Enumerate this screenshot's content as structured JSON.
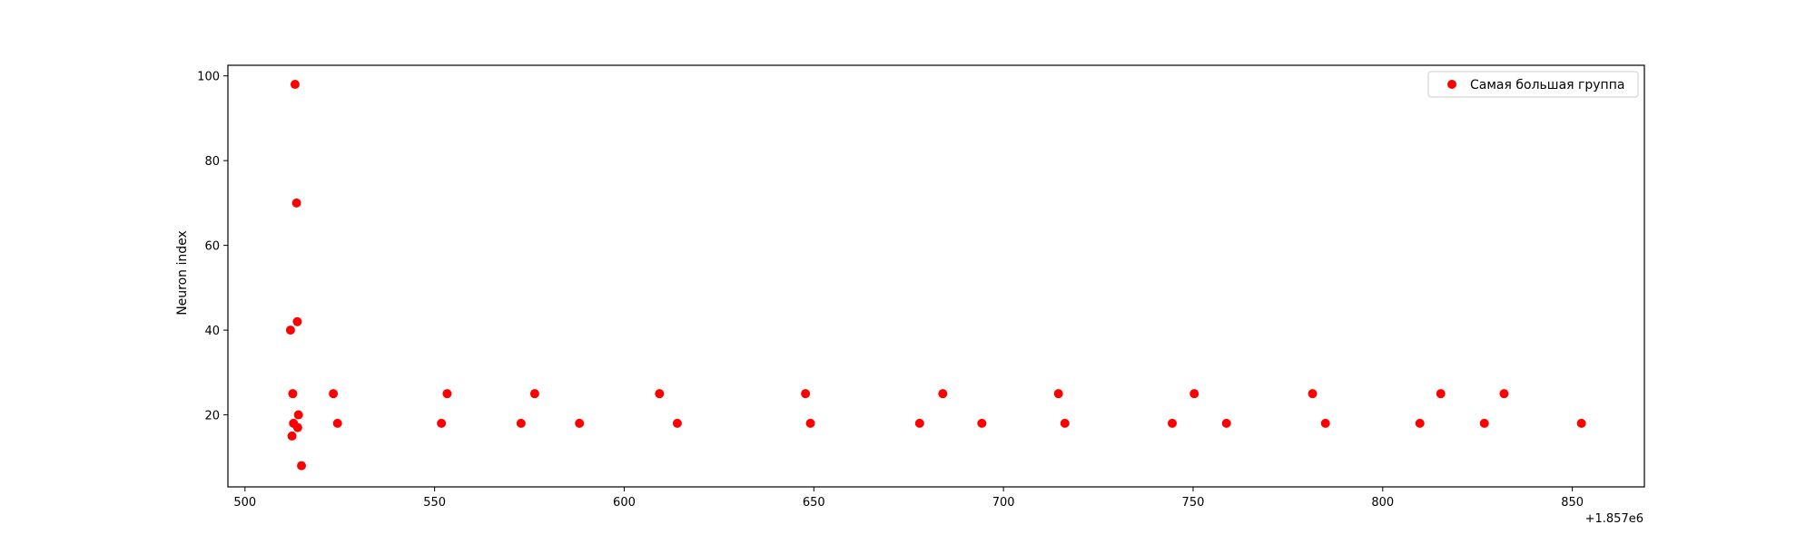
{
  "chart_data": {
    "type": "scatter",
    "title": "",
    "xlabel": "",
    "ylabel": "Neuron index",
    "x_offset_label": "+1.857e6",
    "x_offset": 1857000,
    "xlim": [
      495.5,
      869
    ],
    "ylim": [
      3,
      102.5
    ],
    "xticks": [
      500,
      550,
      600,
      650,
      700,
      750,
      800,
      850
    ],
    "yticks": [
      20,
      40,
      60,
      80,
      100
    ],
    "grid": false,
    "legend": {
      "placement": "upper right"
    },
    "series": [
      {
        "name": "Самая большая группа",
        "color": "#ff0000",
        "points": [
          [
            513.2,
            98
          ],
          [
            513.6,
            70
          ],
          [
            513.8,
            42
          ],
          [
            512.0,
            40
          ],
          [
            512.6,
            25
          ],
          [
            523.3,
            25
          ],
          [
            553.3,
            25
          ],
          [
            576.4,
            25
          ],
          [
            609.3,
            25
          ],
          [
            647.8,
            25
          ],
          [
            684.0,
            25
          ],
          [
            714.5,
            25
          ],
          [
            750.3,
            25
          ],
          [
            781.5,
            25
          ],
          [
            815.3,
            25
          ],
          [
            832.0,
            25
          ],
          [
            514.1,
            20
          ],
          [
            512.8,
            18
          ],
          [
            524.4,
            18
          ],
          [
            551.8,
            18
          ],
          [
            572.8,
            18
          ],
          [
            588.2,
            18
          ],
          [
            614.0,
            18
          ],
          [
            649.1,
            18
          ],
          [
            677.9,
            18
          ],
          [
            694.3,
            18
          ],
          [
            716.2,
            18
          ],
          [
            744.5,
            18
          ],
          [
            758.8,
            18
          ],
          [
            784.9,
            18
          ],
          [
            809.8,
            18
          ],
          [
            826.8,
            18
          ],
          [
            852.4,
            18
          ],
          [
            513.9,
            17
          ],
          [
            512.4,
            15
          ],
          [
            514.9,
            8
          ]
        ]
      }
    ]
  }
}
